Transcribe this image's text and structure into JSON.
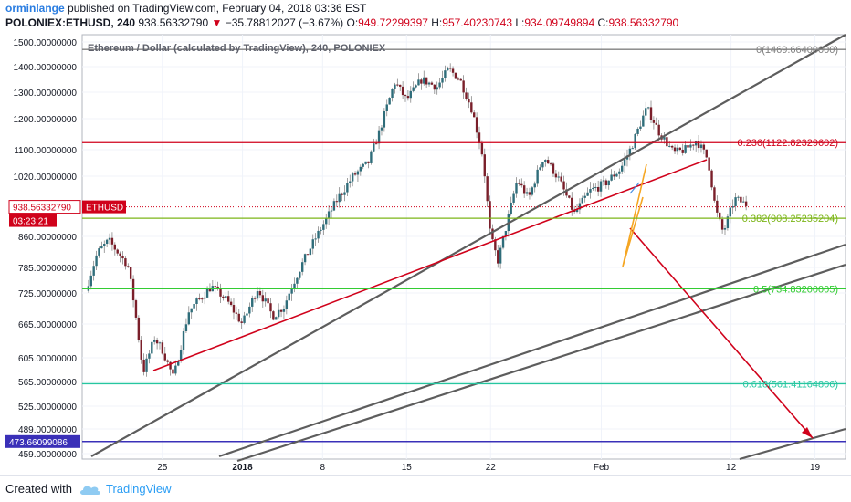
{
  "header": {
    "author": "orminlange",
    "published": "published on TradingView.com, February 04, 2018 03:36 EST",
    "symbol": "POLONIEX:ETHUSD, 240",
    "last": "938.56332790",
    "arrow": "▼",
    "change": "−35.78812027 (−3.67%)",
    "o_label": "O:",
    "o": "949.72299397",
    "h_label": "H:",
    "h": "957.40230743",
    "l_label": "L:",
    "l": "934.09749894",
    "c_label": "C:",
    "c": "938.56332790"
  },
  "footer": {
    "created": "Created with",
    "brand": "TradingView"
  },
  "colors": {
    "up": "#2f6d7a",
    "down": "#7a1f2a",
    "red": "#d0021b",
    "gray": "#5d5d5d",
    "fib0": "#808080",
    "fib236": "#d0021b",
    "fib382": "#7cb518",
    "fib5": "#33cc33",
    "fib618": "#26c6a0",
    "blue": "#3a30b8",
    "orange": "#f5a623"
  },
  "chart_data": {
    "type": "candlestick",
    "title": "Ethereum / Dollar (calculated by TradingView), 240, POLONIEX",
    "ylim": [
      459,
      1500
    ],
    "y_ticks": [
      "1500.00000000",
      "1400.00000000",
      "1300.00000000",
      "1200.00000000",
      "1100.00000000",
      "1020.00000000",
      "860.00000000",
      "785.00000000",
      "725.00000000",
      "665.00000000",
      "605.00000000",
      "565.00000000",
      "525.00000000",
      "489.00000000",
      "459.00000000"
    ],
    "x_ticks": [
      "25",
      "2018",
      "8",
      "15",
      "22",
      "Feb",
      "12",
      "19"
    ],
    "last_price_label": "938.56332790",
    "last_price_symbol": "ETHUSD",
    "countdown": "03:23:21",
    "level_label": "473.66099086",
    "level_value": 473.66,
    "fib_levels": [
      {
        "label": "0(1469.66400000)",
        "value": 1469.664,
        "color": "#808080"
      },
      {
        "label": "0.236(1122.82329602)",
        "value": 1122.823,
        "color": "#d0021b"
      },
      {
        "label": "0.382(908.25235204)",
        "value": 908.252,
        "color": "#7cb518"
      },
      {
        "label": "0.5(734.83200005)",
        "value": 734.832,
        "color": "#33cc33"
      },
      {
        "label": "0.618(561.41164806)",
        "value": 561.412,
        "color": "#26c6a0"
      }
    ],
    "price_path": [
      [
        0,
        730
      ],
      [
        0.015,
        820
      ],
      [
        0.03,
        850
      ],
      [
        0.055,
        790
      ],
      [
        0.075,
        580
      ],
      [
        0.09,
        640
      ],
      [
        0.1,
        620
      ],
      [
        0.115,
        570
      ],
      [
        0.135,
        690
      ],
      [
        0.165,
        740
      ],
      [
        0.185,
        710
      ],
      [
        0.205,
        665
      ],
      [
        0.225,
        735
      ],
      [
        0.245,
        680
      ],
      [
        0.26,
        700
      ],
      [
        0.285,
        800
      ],
      [
        0.305,
        870
      ],
      [
        0.33,
        960
      ],
      [
        0.35,
        1020
      ],
      [
        0.37,
        1060
      ],
      [
        0.385,
        1160
      ],
      [
        0.405,
        1340
      ],
      [
        0.42,
        1270
      ],
      [
        0.44,
        1350
      ],
      [
        0.46,
        1320
      ],
      [
        0.475,
        1390
      ],
      [
        0.49,
        1350
      ],
      [
        0.505,
        1240
      ],
      [
        0.52,
        1080
      ],
      [
        0.53,
        860
      ],
      [
        0.54,
        800
      ],
      [
        0.55,
        880
      ],
      [
        0.565,
        1010
      ],
      [
        0.58,
        960
      ],
      [
        0.6,
        1080
      ],
      [
        0.62,
        1010
      ],
      [
        0.64,
        920
      ],
      [
        0.66,
        980
      ],
      [
        0.68,
        1000
      ],
      [
        0.7,
        1040
      ],
      [
        0.715,
        1110
      ],
      [
        0.735,
        1240
      ],
      [
        0.75,
        1160
      ],
      [
        0.77,
        1090
      ],
      [
        0.785,
        1100
      ],
      [
        0.8,
        1130
      ],
      [
        0.815,
        1070
      ],
      [
        0.825,
        930
      ],
      [
        0.835,
        870
      ],
      [
        0.85,
        960
      ],
      [
        0.865,
        945
      ]
    ]
  }
}
